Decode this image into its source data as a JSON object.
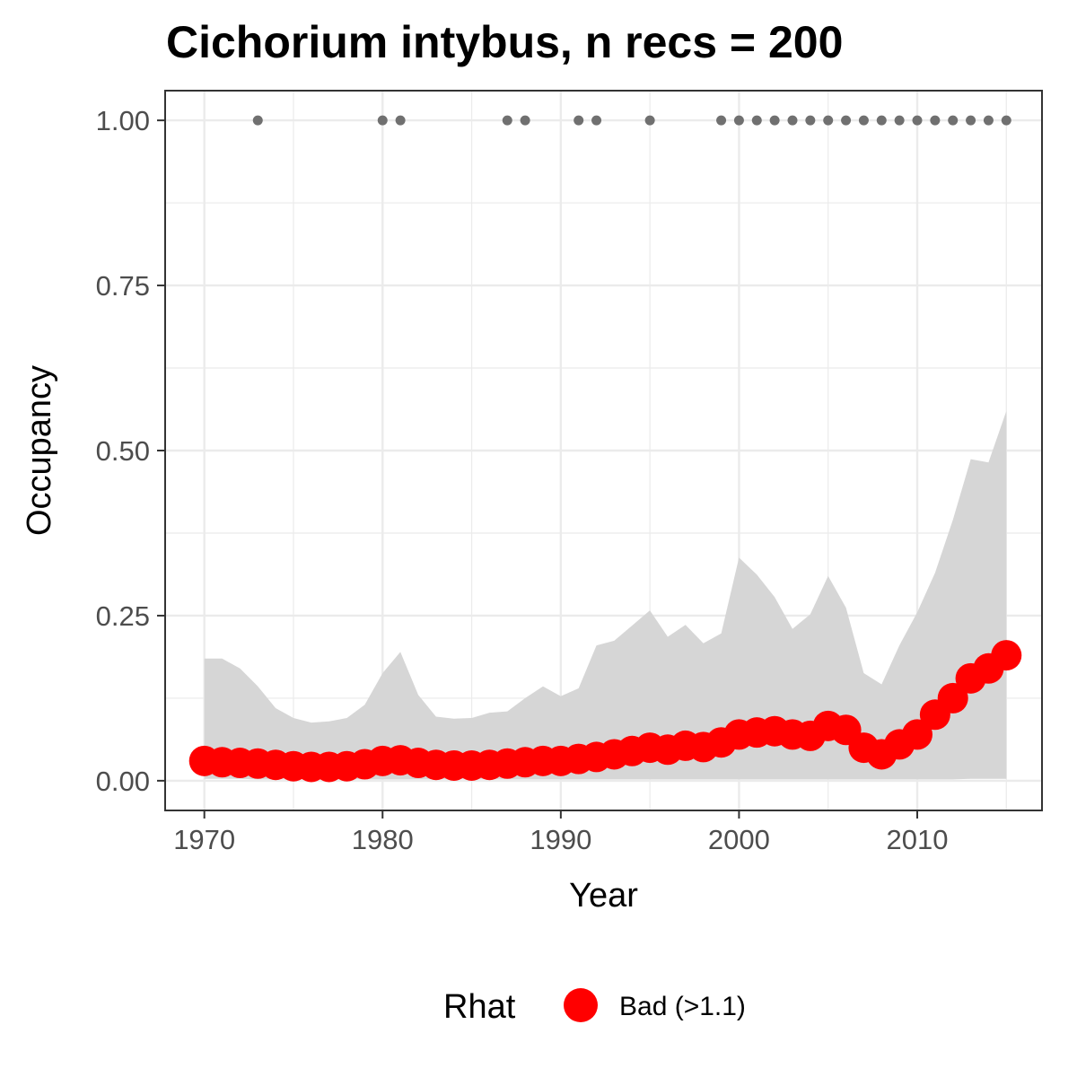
{
  "chart_data": {
    "type": "line",
    "title": "Cichorium intybus, n recs = 200",
    "xlabel": "Year",
    "ylabel": "Occupancy",
    "xlim": [
      1967.8,
      1817.8
    ],
    "xlim_note": "",
    "ylim": [
      -0.045,
      1.045
    ],
    "x_ticks": [
      1970,
      1980,
      1990,
      2000,
      2010
    ],
    "y_ticks": [
      0.0,
      0.25,
      0.5,
      0.75,
      1.0
    ],
    "y_tick_labels": [
      "0.00",
      "0.25",
      "0.50",
      "0.75",
      "1.00"
    ],
    "grid": true,
    "legend": {
      "title": "Rhat",
      "placement": "bottom",
      "entries": [
        {
          "label": "Bad (>1.1)",
          "color": "#ff0000"
        }
      ]
    },
    "colors": {
      "line": "#ff0000",
      "ribbon": "#d6d6d6",
      "detections": "#707070",
      "grid": "#ebebeb",
      "panel_border": "#333333"
    },
    "series": [
      {
        "name": "Bad (>1.1)",
        "x": [
          1970,
          1971,
          1972,
          1973,
          1974,
          1975,
          1976,
          1977,
          1978,
          1979,
          1980,
          1981,
          1982,
          1983,
          1984,
          1985,
          1986,
          1987,
          1988,
          1989,
          1990,
          1991,
          1992,
          1993,
          1994,
          1995,
          1996,
          1997,
          1998,
          1999,
          2000,
          2001,
          2002,
          2003,
          2004,
          2005,
          2006,
          2007,
          2008,
          2009,
          2010,
          2011,
          2012,
          2013,
          2014,
          2015
        ],
        "y": [
          0.03,
          0.028,
          0.027,
          0.026,
          0.024,
          0.022,
          0.021,
          0.021,
          0.022,
          0.025,
          0.03,
          0.031,
          0.027,
          0.024,
          0.023,
          0.023,
          0.024,
          0.026,
          0.028,
          0.03,
          0.03,
          0.033,
          0.036,
          0.04,
          0.045,
          0.05,
          0.047,
          0.053,
          0.051,
          0.058,
          0.07,
          0.073,
          0.075,
          0.07,
          0.068,
          0.083,
          0.077,
          0.05,
          0.04,
          0.055,
          0.07,
          0.1,
          0.125,
          0.155,
          0.17,
          0.19
        ]
      }
    ],
    "ribbon": {
      "x": [
        1970,
        1971,
        1972,
        1973,
        1974,
        1975,
        1976,
        1977,
        1978,
        1979,
        1980,
        1981,
        1982,
        1983,
        1984,
        1985,
        1986,
        1987,
        1988,
        1989,
        1990,
        1991,
        1992,
        1993,
        1994,
        1995,
        1996,
        1997,
        1998,
        1999,
        2000,
        2001,
        2002,
        2003,
        2004,
        2005,
        2006,
        2007,
        2008,
        2009,
        2010,
        2011,
        2012,
        2013,
        2014,
        2015
      ],
      "lower": [
        0.003,
        0.003,
        0.003,
        0.002,
        0.002,
        0.002,
        0.002,
        0.002,
        0.002,
        0.002,
        0.002,
        0.002,
        0.002,
        0.002,
        0.002,
        0.002,
        0.002,
        0.002,
        0.002,
        0.002,
        0.002,
        0.002,
        0.002,
        0.002,
        0.002,
        0.002,
        0.002,
        0.002,
        0.002,
        0.002,
        0.002,
        0.002,
        0.002,
        0.002,
        0.002,
        0.002,
        0.002,
        0.002,
        0.002,
        0.002,
        0.002,
        0.002,
        0.002,
        0.003,
        0.003,
        0.003
      ],
      "upper": [
        0.185,
        0.185,
        0.17,
        0.143,
        0.11,
        0.095,
        0.088,
        0.09,
        0.095,
        0.115,
        0.163,
        0.195,
        0.13,
        0.097,
        0.094,
        0.095,
        0.103,
        0.105,
        0.125,
        0.143,
        0.128,
        0.14,
        0.205,
        0.212,
        0.235,
        0.258,
        0.218,
        0.236,
        0.208,
        0.223,
        0.338,
        0.312,
        0.278,
        0.23,
        0.252,
        0.31,
        0.262,
        0.163,
        0.146,
        0.205,
        0.255,
        0.315,
        0.395,
        0.487,
        0.482,
        0.56
      ]
    },
    "detections": {
      "x": [
        1973,
        1980,
        1981,
        1987,
        1988,
        1991,
        1992,
        1995,
        1999,
        2000,
        2001,
        2002,
        2003,
        2004,
        2005,
        2006,
        2007,
        2008,
        2009,
        2010,
        2011,
        2012,
        2013,
        2014,
        2015
      ],
      "y": 1.0
    }
  }
}
